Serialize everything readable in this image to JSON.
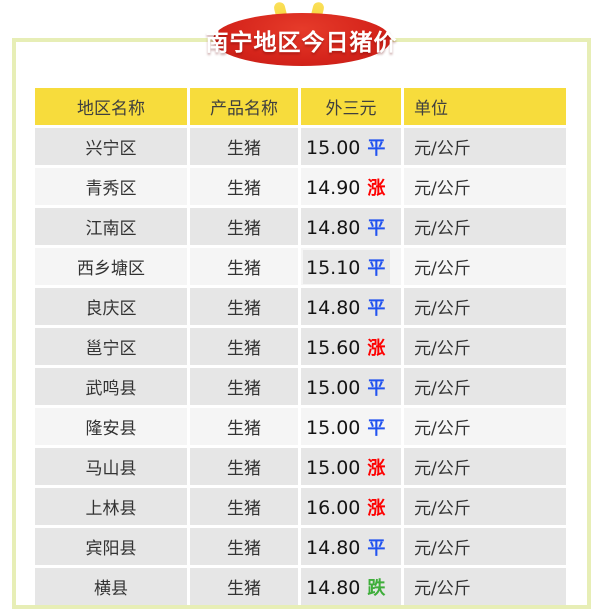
{
  "page": {
    "background": "#ffffff",
    "border_color": "#e7eeb6"
  },
  "badge": {
    "title": "南宁地区今日猪价",
    "bg_color": "#d5241b",
    "ear_color": "#f6d230",
    "text_color": "#ffffff"
  },
  "table": {
    "header_bg": "#f7dc3c",
    "headers": [
      "地区名称",
      "产品名称",
      "外三元",
      "单位"
    ],
    "row_tones": {
      "gray": "#e6e6e6",
      "light": "#f5f5f5"
    },
    "change_colors": {
      "flat": "#2253f0",
      "up": "#fe0000",
      "down": "#3fae3b"
    },
    "rows": [
      {
        "region": "兴宁区",
        "product": "生猪",
        "price": "15.00",
        "change": "平",
        "change_type": "flat",
        "unit": "元/公斤",
        "tone": "gray",
        "price_highlight": false
      },
      {
        "region": "青秀区",
        "product": "生猪",
        "price": "14.90",
        "change": "涨",
        "change_type": "up",
        "unit": "元/公斤",
        "tone": "light",
        "price_highlight": false
      },
      {
        "region": "江南区",
        "product": "生猪",
        "price": "14.80",
        "change": "平",
        "change_type": "flat",
        "unit": "元/公斤",
        "tone": "gray",
        "price_highlight": false
      },
      {
        "region": "西乡塘区",
        "product": "生猪",
        "price": "15.10",
        "change": "平",
        "change_type": "flat",
        "unit": "元/公斤",
        "tone": "light",
        "price_highlight": true
      },
      {
        "region": "良庆区",
        "product": "生猪",
        "price": "14.80",
        "change": "平",
        "change_type": "flat",
        "unit": "元/公斤",
        "tone": "gray",
        "price_highlight": false
      },
      {
        "region": "邕宁区",
        "product": "生猪",
        "price": "15.60",
        "change": "涨",
        "change_type": "up",
        "unit": "元/公斤",
        "tone": "gray",
        "price_highlight": false
      },
      {
        "region": "武鸣县",
        "product": "生猪",
        "price": "15.00",
        "change": "平",
        "change_type": "flat",
        "unit": "元/公斤",
        "tone": "gray",
        "price_highlight": false
      },
      {
        "region": "隆安县",
        "product": "生猪",
        "price": "15.00",
        "change": "平",
        "change_type": "flat",
        "unit": "元/公斤",
        "tone": "light",
        "price_highlight": false
      },
      {
        "region": "马山县",
        "product": "生猪",
        "price": "15.00",
        "change": "涨",
        "change_type": "up",
        "unit": "元/公斤",
        "tone": "gray",
        "price_highlight": false
      },
      {
        "region": "上林县",
        "product": "生猪",
        "price": "16.00",
        "change": "涨",
        "change_type": "up",
        "unit": "元/公斤",
        "tone": "gray",
        "price_highlight": false
      },
      {
        "region": "宾阳县",
        "product": "生猪",
        "price": "14.80",
        "change": "平",
        "change_type": "flat",
        "unit": "元/公斤",
        "tone": "gray",
        "price_highlight": false
      },
      {
        "region": "横县",
        "product": "生猪",
        "price": "14.80",
        "change": "跌",
        "change_type": "down",
        "unit": "元/公斤",
        "tone": "gray",
        "price_highlight": false
      }
    ]
  }
}
